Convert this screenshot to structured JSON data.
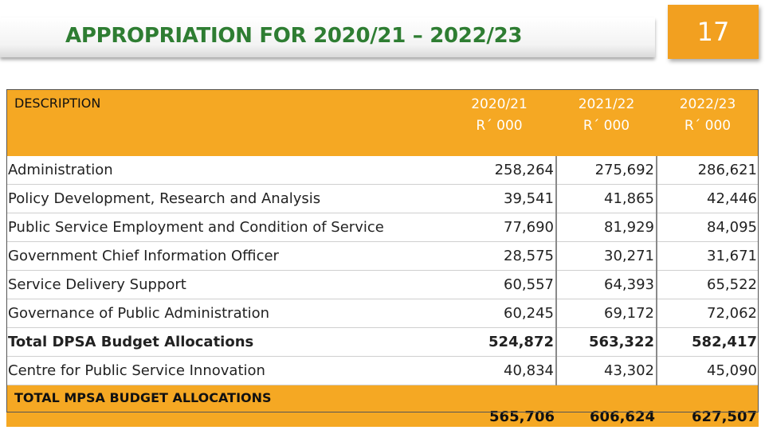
{
  "title": "APPROPRIATION FOR 2020/21 – 2022/23",
  "page_number": "17",
  "table": {
    "header": {
      "description": "DESCRIPTION",
      "years": [
        {
          "year": "2020/21",
          "unit": "R´ 000"
        },
        {
          "year": "2021/22",
          "unit": "R´ 000"
        },
        {
          "year": "2022/23",
          "unit": "R´ 000"
        }
      ]
    },
    "rows": [
      {
        "name": "Administration",
        "values": [
          "258,264",
          "275,692",
          "286,621"
        ]
      },
      {
        "name": "Policy Development, Research and Analysis",
        "values": [
          "39,541",
          "41,865",
          "42,446"
        ]
      },
      {
        "name": "Public Service Employment and Condition of Service",
        "values": [
          "77,690",
          "81,929",
          "84,095"
        ]
      },
      {
        "name": "Government Chief Information Officer",
        "values": [
          "28,575",
          "30,271",
          "31,671"
        ]
      },
      {
        "name": "Service Delivery Support",
        "values": [
          "60,557",
          "64,393",
          "65,522"
        ]
      },
      {
        "name": "Governance of Public Administration",
        "values": [
          "60,245",
          "69,172",
          "72,062"
        ]
      },
      {
        "name": "Total DPSA Budget Allocations",
        "values": [
          "524,872",
          "563,322",
          "582,417"
        ]
      },
      {
        "name": "Centre for Public Service Innovation",
        "values": [
          "40,834",
          "43,302",
          "45,090"
        ]
      }
    ],
    "total": {
      "name": "TOTAL MPSA BUDGET ALLOCATIONS",
      "values": [
        "565,706",
        "606,624",
        "627,507"
      ]
    }
  },
  "colors": {
    "accent": "#f5a823",
    "title": "#2e7d32"
  }
}
